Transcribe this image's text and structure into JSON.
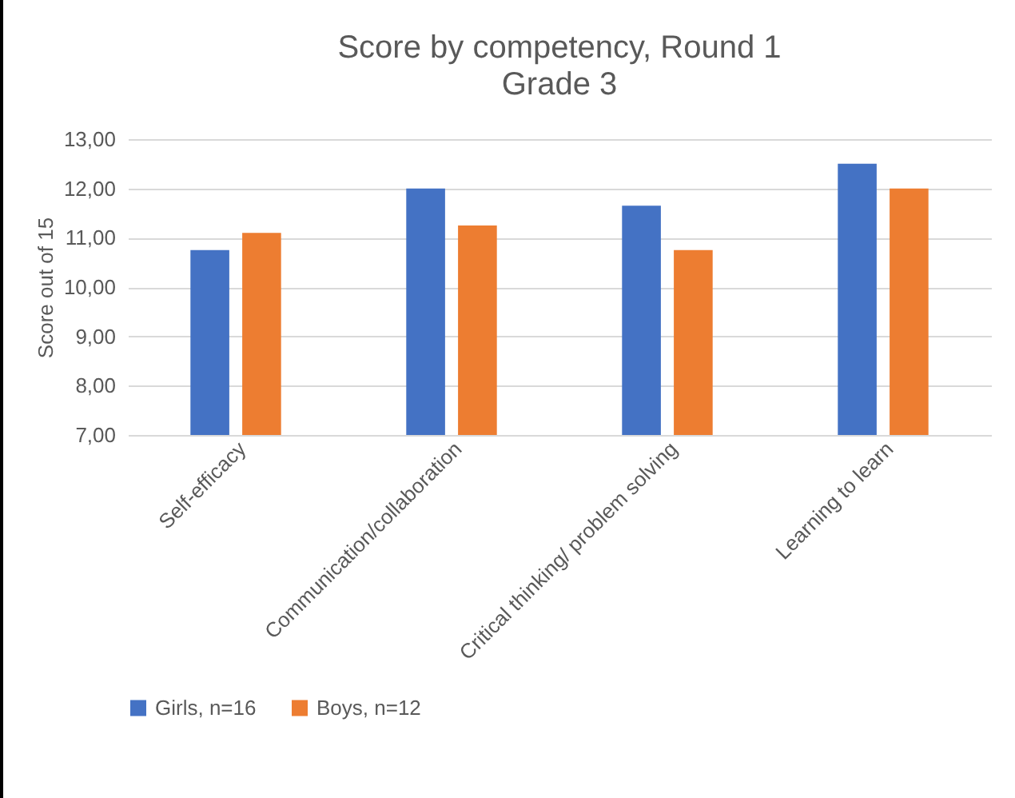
{
  "chart_data": {
    "type": "bar",
    "title": "Score by competency, Round 1",
    "subtitle": "Grade 3",
    "ylabel": "Score out of 15",
    "categories": [
      "Self-efficacy",
      "Communication/collaboration",
      "Critical thinking/ problem solving",
      "Learning to learn"
    ],
    "series": [
      {
        "name": "Girls, n=16",
        "color": "#4472c4",
        "values": [
          10.75,
          12.0,
          11.65,
          12.5
        ]
      },
      {
        "name": "Boys, n=12",
        "color": "#ed7d31",
        "values": [
          11.1,
          11.25,
          10.75,
          12.0
        ]
      }
    ],
    "ylim": [
      7,
      13
    ],
    "yticks": [
      {
        "value": 7,
        "label": "7,00"
      },
      {
        "value": 8,
        "label": "8,00"
      },
      {
        "value": 9,
        "label": "9,00"
      },
      {
        "value": 10,
        "label": "10,00"
      },
      {
        "value": 11,
        "label": "11,00"
      },
      {
        "value": 12,
        "label": "12,00"
      },
      {
        "value": 13,
        "label": "13,00"
      }
    ],
    "grid": "y",
    "legend": "bottom"
  }
}
